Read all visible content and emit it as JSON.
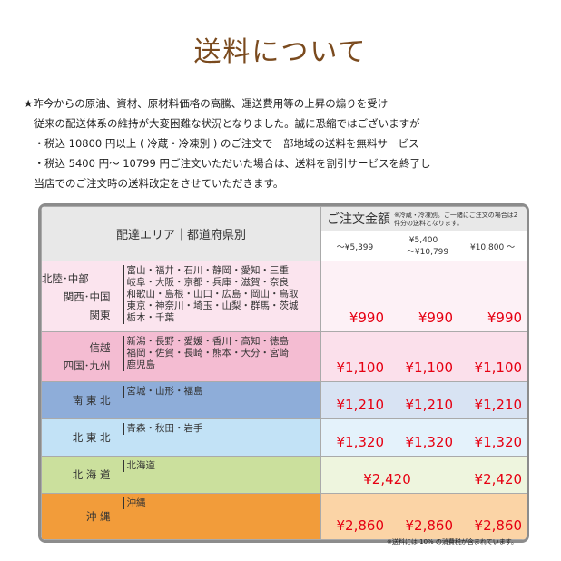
{
  "title": "送料について",
  "notes": [
    "★昨今からの原油、資材、原材料価格の高騰、運送費用等の上昇の煽りを受け",
    "　従来の配送体系の維持が大変困難な状況となりました。誠に恐縮ではございますが",
    "　・税込 10800 円以上 ( 冷蔵・冷凍別 ) のご注文で一部地域の送料を無料サービス",
    "　・税込 5400 円～ 10799 円ご注文いただいた場合は、送料を割引サービスを終了し",
    "　当店でのご注文時の送料改定をさせていただきます。"
  ],
  "table": {
    "area_header": "配達エリア｜都道府県別",
    "total_header": "ご注文金額",
    "total_note": "※冷蔵・冷凍別。ご一緒にご注文の場合は2件分の送料となります。",
    "columns": [
      "～¥5,399",
      "¥5,400\n　～¥10,799",
      "¥10,800 ～"
    ],
    "rows": [
      {
        "area": [
          "北陸･中部",
          "関西･中国",
          "関東"
        ],
        "prefs": [
          "富山・福井・石川・静岡・愛知・三重",
          "岐阜・大阪・京都・兵庫・滋賀・奈良",
          "和歌山・島根・山口・広島・岡山・鳥取",
          "東京・神奈川・埼玉・山梨・群馬・茨城",
          "栃木・千葉"
        ],
        "prices": [
          "¥990",
          "¥990",
          "¥990"
        ],
        "color": "#fbe4ee",
        "price_bg": "#fdf1f6"
      },
      {
        "area": [
          "信越",
          "四国･九州"
        ],
        "prefs": [
          "新潟・長野・愛媛・香川・高知・徳島",
          "福岡・佐賀・長崎・熊本・大分・宮崎",
          "鹿児島"
        ],
        "prices": [
          "¥1,100",
          "¥1,100",
          "¥1,100"
        ],
        "color": "#f4bcd2",
        "price_bg": "#fbe0eb"
      },
      {
        "area": [
          "南 東 北"
        ],
        "prefs": [
          "宮城・山形・福島"
        ],
        "prices": [
          "¥1,210",
          "¥1,210",
          "¥1,210"
        ],
        "color": "#8eadd9",
        "price_bg": "#d8e3f3"
      },
      {
        "area": [
          "北 東 北"
        ],
        "prefs": [
          "青森・秋田・岩手"
        ],
        "prices": [
          "¥1,320",
          "¥1,320",
          "¥1,320"
        ],
        "color": "#c2e2f6",
        "price_bg": "#e4f2fb"
      },
      {
        "area": [
          "北 海 道"
        ],
        "prefs": [
          "北海道"
        ],
        "prices": [
          "¥2,420",
          "¥2,420"
        ],
        "merged_first_two": true,
        "color": "#cbe09d",
        "price_bg": "#eef5de"
      },
      {
        "area": [
          "沖 縄"
        ],
        "prefs": [
          "沖縄"
        ],
        "prices": [
          "¥2,860",
          "¥2,860",
          "¥2,860"
        ],
        "color": "#f29c3a",
        "price_bg": "#fbd4a6"
      }
    ]
  },
  "footnote": "※送料には 10% の消費税が含まれています。"
}
